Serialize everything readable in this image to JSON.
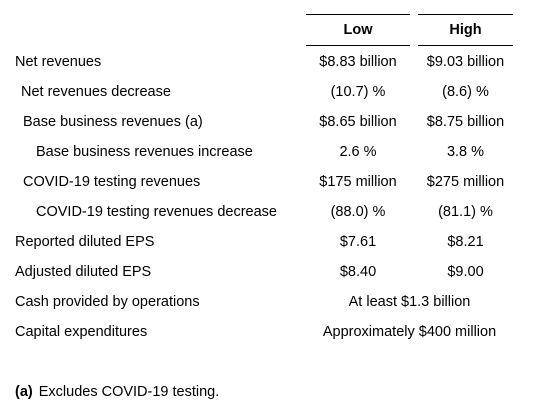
{
  "columns": {
    "low": "Low",
    "high": "High"
  },
  "rows": [
    {
      "label": "Net revenues",
      "low": "$8.83 billion",
      "high": "$9.03 billion"
    },
    {
      "label": "Net revenues decrease",
      "low": "(10.7) %",
      "high": "(8.6) %"
    },
    {
      "label": "Base business revenues (a)",
      "low": "$8.65 billion",
      "high": "$8.75 billion"
    },
    {
      "label": "Base business revenues increase",
      "low": "2.6 %",
      "high": "3.8 %"
    },
    {
      "label": "COVID-19 testing revenues",
      "low": "$175 million",
      "high": "$275 million"
    },
    {
      "label": "COVID-19 testing revenues decrease",
      "low": "(88.0) %",
      "high": "(81.1) %"
    },
    {
      "label": "Reported diluted EPS",
      "low": "$7.61",
      "high": "$8.21"
    },
    {
      "label": "Adjusted diluted EPS",
      "low": "$8.40",
      "high": "$9.00"
    },
    {
      "label": "Cash provided by operations",
      "combined": "At least $1.3 billion"
    },
    {
      "label": "Capital expenditures",
      "combined": "Approximately $400 million"
    }
  ],
  "footnote": {
    "marker": "(a)",
    "text": "Excludes COVID-19 testing."
  }
}
